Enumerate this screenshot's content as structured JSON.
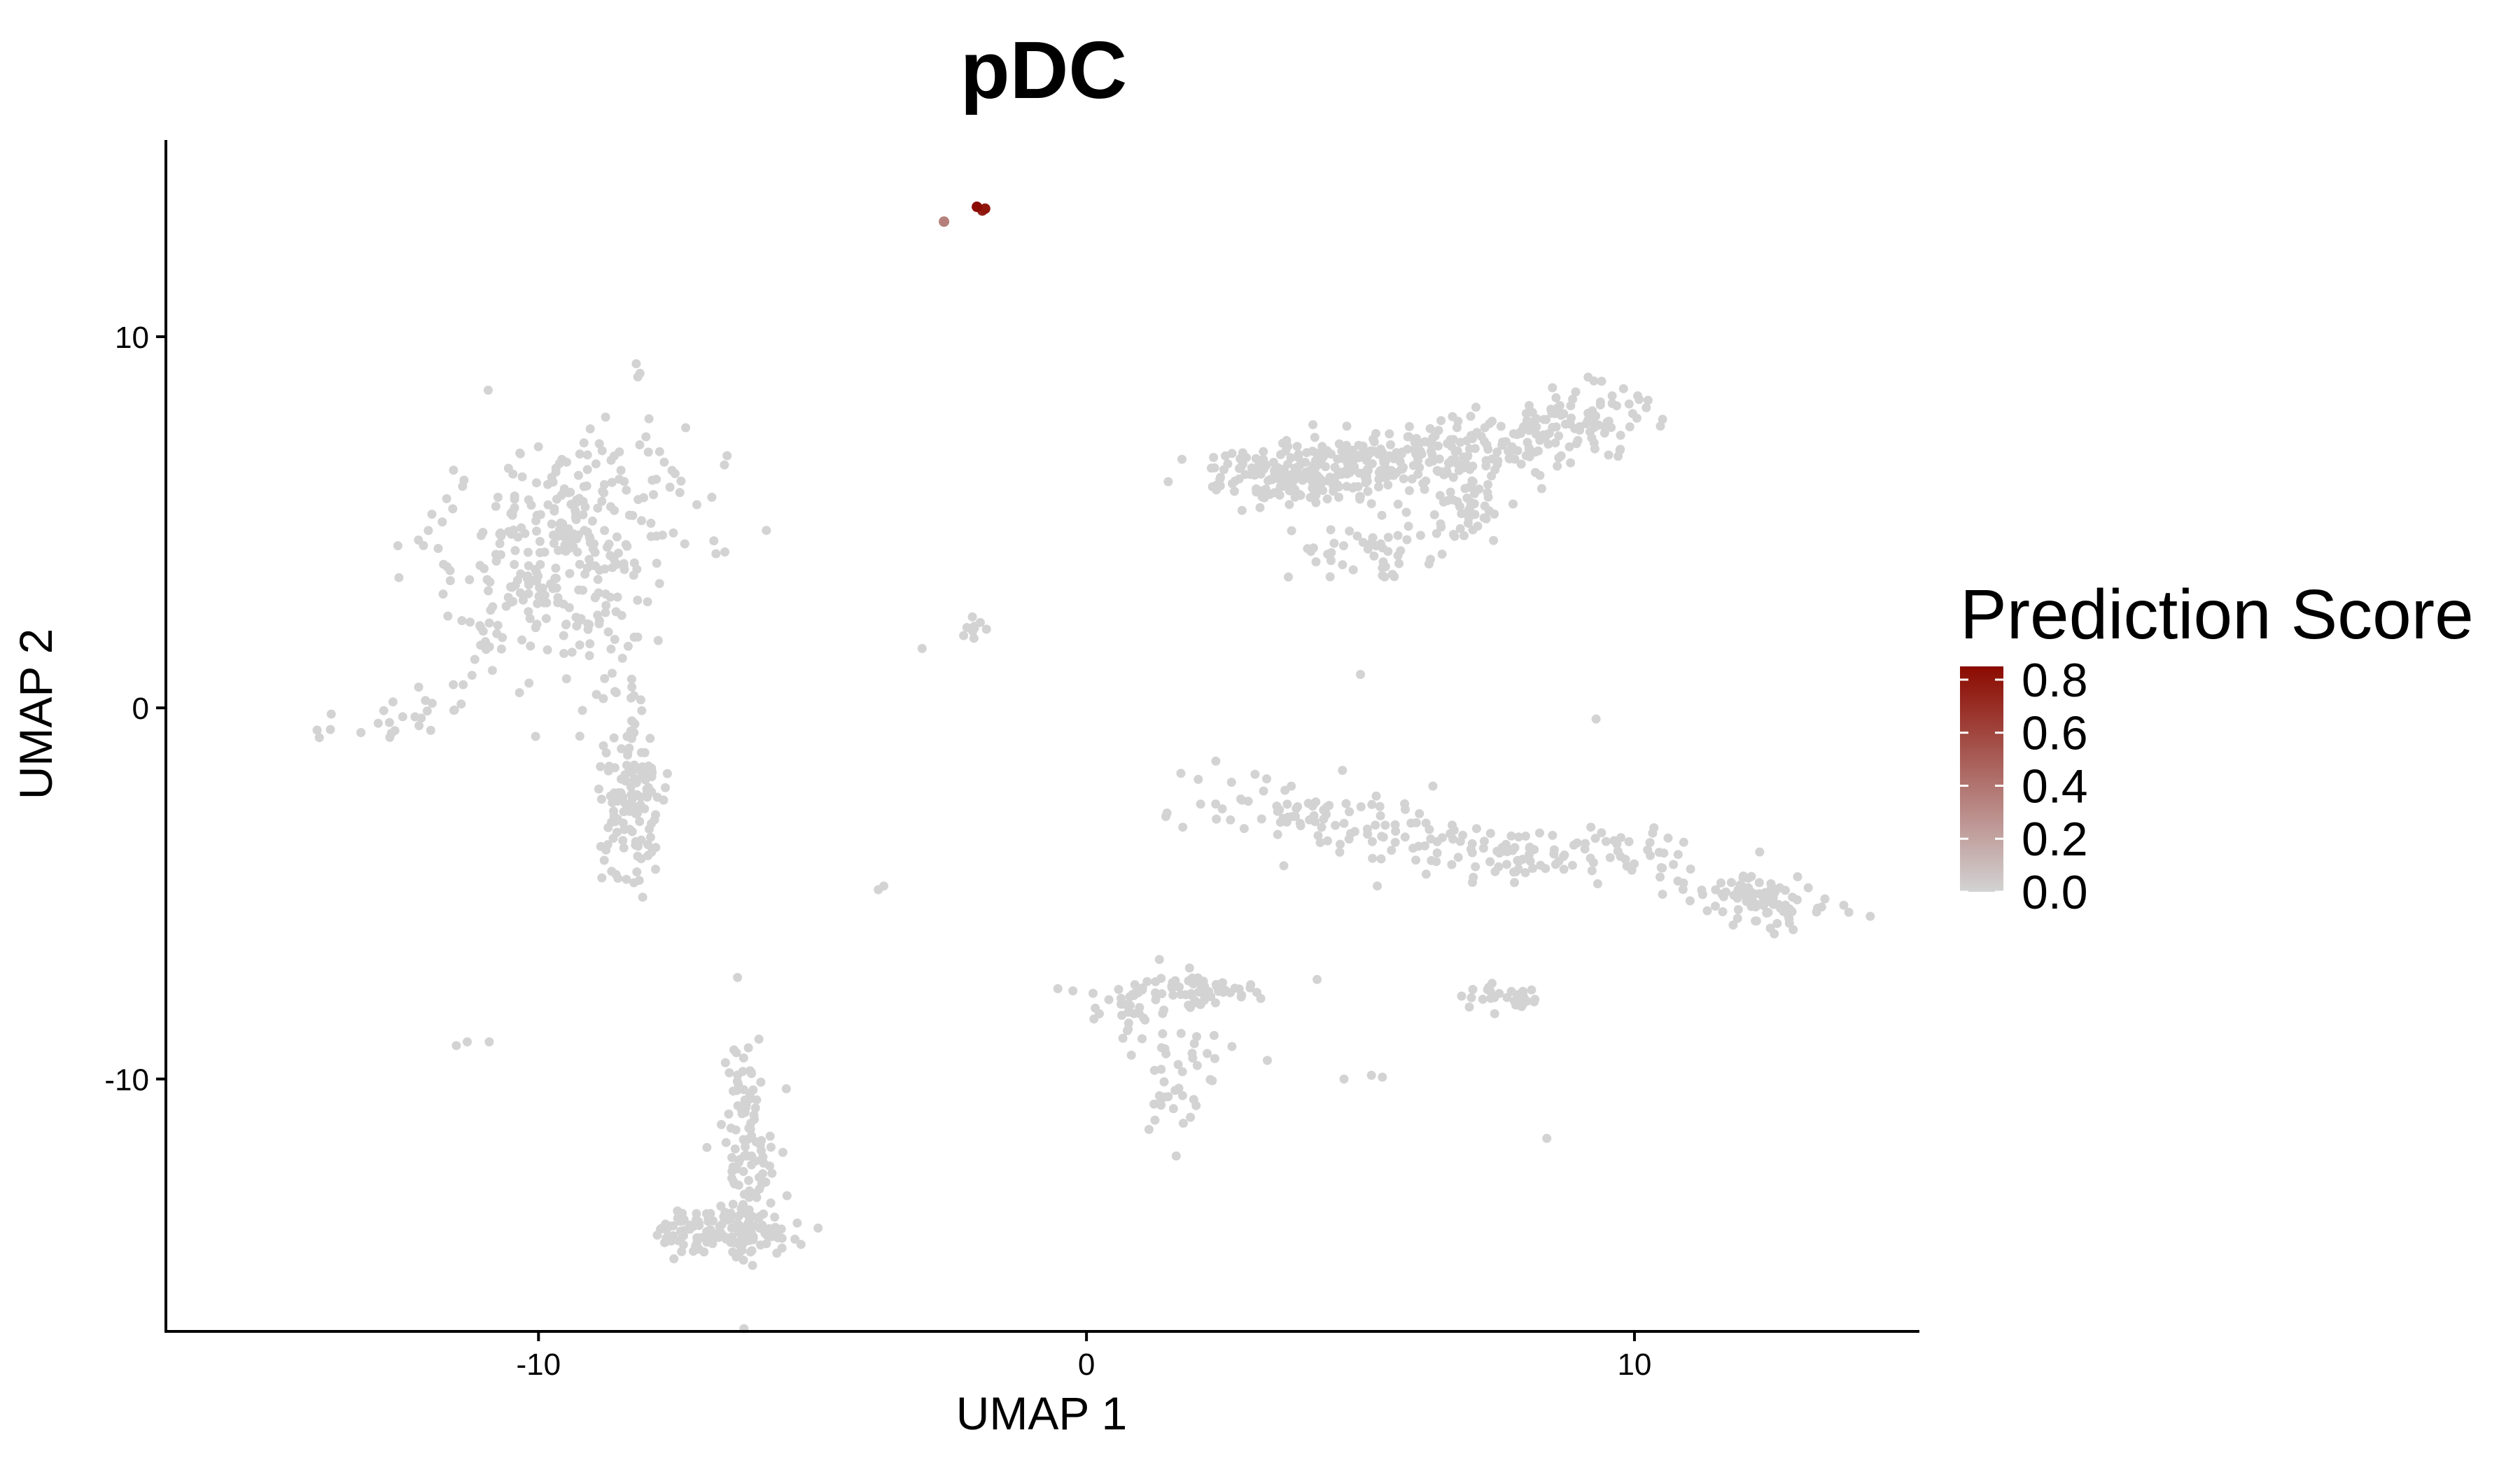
{
  "chart_data": {
    "type": "scatter",
    "title": "pDC",
    "xlabel": "UMAP 1",
    "ylabel": "UMAP 2",
    "xlim": [
      -16.8,
      15.2
    ],
    "ylim": [
      -16.8,
      15.3
    ],
    "xticks": [
      -10,
      0,
      10
    ],
    "xtick_labels": [
      "-10",
      "0",
      "10"
    ],
    "yticks": [
      -10,
      0,
      10
    ],
    "ytick_labels": [
      "-10",
      "0",
      "10"
    ],
    "grid": false,
    "legend": {
      "title": "Prediction Score",
      "placement": "right",
      "type": "colorbar",
      "ticks": [
        0.8,
        0.6,
        0.4,
        0.2,
        0.0
      ],
      "tick_labels": [
        "0.8",
        "0.6",
        "0.4",
        "0.2",
        "0.0"
      ],
      "range": [
        0.0,
        0.85
      ],
      "low_color": "#d3d3d3",
      "high_color": "#8b0a00"
    },
    "clusters": [
      {
        "cx": -9.5,
        "cy": 4.3,
        "sx": 1.05,
        "sy": 1.9,
        "n": 340,
        "rot": -0.28
      },
      {
        "cx": -8.3,
        "cy": -2.2,
        "sx": 0.35,
        "sy": 1.35,
        "n": 140,
        "rot": 0
      },
      {
        "cx": -12.3,
        "cy": -0.2,
        "sx": 0.75,
        "sy": 0.3,
        "n": 22,
        "rot": 0.35
      },
      {
        "cx": -6.2,
        "cy": -11.8,
        "sx": 0.25,
        "sy": 1.5,
        "n": 110,
        "rot": 0
      },
      {
        "cx": -6.6,
        "cy": -14.1,
        "sx": 0.6,
        "sy": 0.3,
        "n": 130,
        "rot": 0
      },
      {
        "cx": 3.8,
        "cy": 6.3,
        "sx": 1.0,
        "sy": 0.35,
        "n": 150,
        "rot": 0
      },
      {
        "cx": 5.9,
        "cy": 6.7,
        "sx": 1.3,
        "sy": 0.45,
        "n": 190,
        "rot": 0.1
      },
      {
        "cx": 8.6,
        "cy": 7.6,
        "sx": 0.9,
        "sy": 0.45,
        "n": 110,
        "rot": 0.3
      },
      {
        "cx": 5.3,
        "cy": 4.4,
        "sx": 0.8,
        "sy": 0.55,
        "n": 55,
        "rot": 0
      },
      {
        "cx": 7.0,
        "cy": 5.5,
        "sx": 0.3,
        "sy": 0.55,
        "n": 40,
        "rot": 0
      },
      {
        "cx": 4.8,
        "cy": -3.2,
        "sx": 1.7,
        "sy": 0.45,
        "n": 110,
        "rot": -0.3
      },
      {
        "cx": 7.8,
        "cy": -3.9,
        "sx": 1.1,
        "sy": 0.35,
        "n": 60,
        "rot": -0.1
      },
      {
        "cx": 10.3,
        "cy": -3.8,
        "sx": 0.8,
        "sy": 0.35,
        "n": 30,
        "rot": -0.3
      },
      {
        "cx": 12.2,
        "cy": -5.2,
        "sx": 0.7,
        "sy": 0.3,
        "n": 95,
        "rot": -0.25
      },
      {
        "cx": 2.0,
        "cy": -7.6,
        "sx": 0.7,
        "sy": 0.2,
        "n": 60,
        "rot": 0
      },
      {
        "cx": 0.7,
        "cy": -8.2,
        "sx": 0.45,
        "sy": 0.4,
        "n": 25,
        "rot": 0
      },
      {
        "cx": 1.6,
        "cy": -9.6,
        "sx": 0.45,
        "sy": 1.1,
        "n": 45,
        "rot": 0
      },
      {
        "cx": 7.6,
        "cy": -7.8,
        "sx": 0.45,
        "sy": 0.2,
        "n": 30,
        "rot": 0
      },
      {
        "cx": -2.0,
        "cy": 2.1,
        "sx": 0.18,
        "sy": 0.4,
        "n": 9,
        "rot": 0
      }
    ],
    "points": [
      {
        "x": -14.0,
        "y": -0.8,
        "score": 0
      },
      {
        "x": -11.3,
        "y": -9.0,
        "score": 0
      },
      {
        "x": -10.9,
        "y": -9.0,
        "score": 0
      },
      {
        "x": -11.5,
        "y": -9.1,
        "score": 0
      },
      {
        "x": -3.7,
        "y": -4.8,
        "score": 0
      },
      {
        "x": -3.8,
        "y": -4.9,
        "score": 0
      },
      {
        "x": -3.0,
        "y": 1.6,
        "score": 0
      },
      {
        "x": -6.8,
        "y": 4.5,
        "score": 0
      },
      {
        "x": -6.6,
        "y": 4.2,
        "score": 0
      },
      {
        "x": 5.0,
        "y": 0.9,
        "score": 0
      },
      {
        "x": 8.4,
        "y": -11.6,
        "score": 0
      },
      {
        "x": 4.7,
        "y": -10.0,
        "score": 0
      },
      {
        "x": 5.2,
        "y": -9.9,
        "score": 0
      },
      {
        "x": 5.4,
        "y": -9.95,
        "score": 0
      },
      {
        "x": 3.3,
        "y": -9.5,
        "score": 0
      },
      {
        "x": 9.4,
        "y": 8.8,
        "score": 0
      },
      {
        "x": 9.8,
        "y": 8.6,
        "score": 0
      },
      {
        "x": 9.3,
        "y": -0.3,
        "score": 0
      },
      {
        "x": -2.6,
        "y": 13.1,
        "score": 0.35
      },
      {
        "x": -2.0,
        "y": 13.5,
        "score": 0.85
      },
      {
        "x": -1.9,
        "y": 13.4,
        "score": 0.75
      },
      {
        "x": -1.85,
        "y": 13.45,
        "score": 0.8
      }
    ]
  }
}
